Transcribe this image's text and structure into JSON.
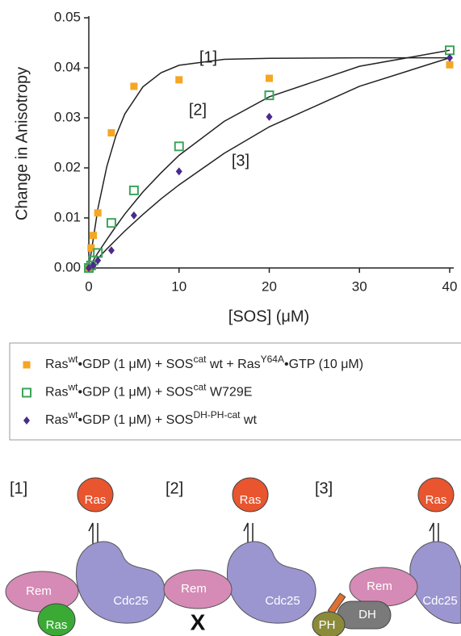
{
  "chart_data": {
    "type": "scatter",
    "xlabel": "[SOS] (μM)",
    "ylabel": "Change in Anisotropy",
    "xlim": [
      0,
      40
    ],
    "xticks": [
      0,
      10,
      20,
      30,
      40
    ],
    "ylim": [
      0,
      0.05
    ],
    "yticks": [
      {
        "value": 0,
        "label": "0.00"
      },
      {
        "value": 0.01,
        "label": "0.01"
      },
      {
        "value": 0.02,
        "label": "0.02"
      },
      {
        "value": 0.03,
        "label": "0.03"
      },
      {
        "value": 0.04,
        "label": "0.04"
      },
      {
        "value": 0.05,
        "label": "0.05"
      }
    ],
    "series": [
      {
        "name_parts": [
          {
            "text": "Ras"
          },
          {
            "text": "wt",
            "sup": true
          },
          {
            "text": "•GDP (1 μM) + SOS"
          },
          {
            "text": "cat",
            "sup": true
          },
          {
            "text": " wt  + Ras"
          },
          {
            "text": "Y64A",
            "sup": true
          },
          {
            "text": "•GTP (10 μM)"
          }
        ],
        "marker": "square",
        "color": "#f5a623",
        "x": [
          0,
          0.25,
          0.5,
          1,
          2.5,
          5,
          10,
          20,
          40
        ],
        "values": [
          0,
          0.004,
          0.0065,
          0.011,
          0.027,
          0.0363,
          0.0376,
          0.0379,
          0.0406
        ]
      },
      {
        "name_parts": [
          {
            "text": "Ras"
          },
          {
            "text": "wt",
            "sup": true
          },
          {
            "text": "•GDP (1 μM) + SOS"
          },
          {
            "text": "cat",
            "sup": true
          },
          {
            "text": " W729E"
          }
        ],
        "marker": "open-square",
        "color": "#3aa55a",
        "x": [
          0,
          0.25,
          0.5,
          1,
          2.5,
          5,
          10,
          20,
          40
        ],
        "values": [
          0,
          0.0005,
          0.0015,
          0.003,
          0.009,
          0.0155,
          0.0243,
          0.0345,
          0.0435
        ]
      },
      {
        "name_parts": [
          {
            "text": "Ras"
          },
          {
            "text": "wt",
            "sup": true
          },
          {
            "text": "•GDP (1 μM) + SOS"
          },
          {
            "text": "DH-PH-cat",
            "sup": true
          },
          {
            "text": " wt"
          }
        ],
        "marker": "diamond",
        "color": "#4b2a8c",
        "x": [
          0,
          0.5,
          1,
          2.5,
          5,
          10,
          20,
          40
        ],
        "values": [
          0,
          0.0005,
          0.0015,
          0.0035,
          0.0105,
          0.0193,
          0.0302,
          0.042
        ]
      }
    ],
    "fit_x": [
      0,
      1,
      2,
      3,
      4,
      6,
      8,
      10,
      15,
      20,
      30,
      40
    ],
    "fits": [
      {
        "label": "[1]",
        "color": "#222",
        "values": [
          0,
          0.0118,
          0.0203,
          0.0264,
          0.0308,
          0.0362,
          0.039,
          0.0405,
          0.0417,
          0.0419,
          0.042,
          0.042
        ]
      },
      {
        "label": "[2]",
        "color": "#222",
        "values": [
          0,
          0.003,
          0.0057,
          0.0083,
          0.0108,
          0.0152,
          0.019,
          0.0225,
          0.0293,
          0.0342,
          0.0403,
          0.0435
        ]
      },
      {
        "label": "[3]",
        "color": "#222",
        "values": [
          0,
          0.0019,
          0.0038,
          0.0056,
          0.0074,
          0.0107,
          0.0138,
          0.0166,
          0.0229,
          0.0282,
          0.0363,
          0.042
        ]
      }
    ]
  },
  "diagram": {
    "panels": [
      {
        "label": "[1]",
        "ras_top": "Ras",
        "rem": "Rem",
        "cdc25": "Cdc25",
        "ras_bound": "Ras"
      },
      {
        "label": "[2]",
        "ras_top": "Ras",
        "rem": "Rem",
        "mutation": "X",
        "cdc25": "Cdc25"
      },
      {
        "label": "[3]",
        "ras_top": "Ras",
        "rem": "Rem",
        "dh": "DH",
        "ph": "PH",
        "cdc25": "Cdc25"
      }
    ]
  }
}
